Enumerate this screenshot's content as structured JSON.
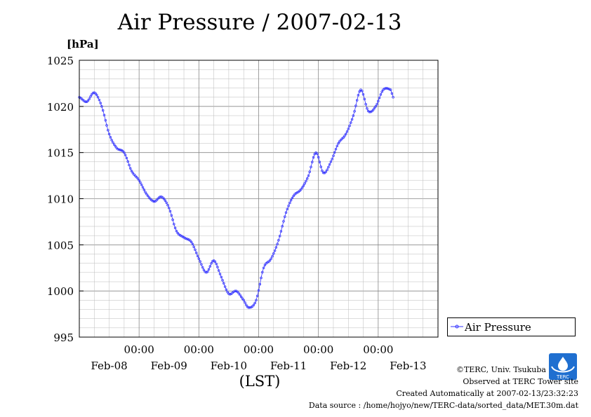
{
  "title": "Air Pressure / 2007-02-13",
  "unit_label": "[hPa]",
  "x_axis_label": "(LST)",
  "legend_label": "Air Pressure",
  "series_color": "#3333ff",
  "credits": {
    "line1": "©TERC, Univ. Tsukuba",
    "line2": "Observed at TERC Tower site",
    "line3": "Created Automatically at 2007-02-13/23:32:23",
    "line4": "Data source : /home/hojyo/new/TERC-data/sorted_data/MET.30m.dat"
  },
  "logo_text": "TERC",
  "chart_data": {
    "type": "line",
    "title": "Air Pressure / 2007-02-13",
    "xlabel": "(LST)",
    "ylabel": "[hPa]",
    "ylim": [
      995,
      1025
    ],
    "xlim_days": [
      "2007-02-08 00:00",
      "2007-02-14 00:00"
    ],
    "grid": true,
    "legend_position": "right",
    "y_ticks": [
      "995",
      "1000",
      "1005",
      "1010",
      "1015",
      "1020",
      "1025"
    ],
    "x_tick_times": [
      "00:00",
      "00:00",
      "00:00",
      "00:00",
      "00:00"
    ],
    "x_tick_dates": [
      "Feb-08",
      "Feb-09",
      "Feb-10",
      "Feb-11",
      "Feb-12",
      "Feb-13"
    ],
    "series": [
      {
        "name": "Air Pressure",
        "points": [
          [
            "2007-02-08 00:00",
            1021.0
          ],
          [
            "2007-02-08 03:00",
            1020.5
          ],
          [
            "2007-02-08 06:00",
            1021.5
          ],
          [
            "2007-02-08 09:00",
            1020.0
          ],
          [
            "2007-02-08 12:00",
            1017.0
          ],
          [
            "2007-02-08 15:00",
            1015.5
          ],
          [
            "2007-02-08 18:00",
            1015.0
          ],
          [
            "2007-02-08 21:00",
            1013.0
          ],
          [
            "2007-02-09 00:00",
            1012.0
          ],
          [
            "2007-02-09 03:00",
            1010.5
          ],
          [
            "2007-02-09 06:00",
            1009.7
          ],
          [
            "2007-02-09 09:00",
            1010.2
          ],
          [
            "2007-02-09 12:00",
            1009.0
          ],
          [
            "2007-02-09 15:00",
            1006.5
          ],
          [
            "2007-02-09 18:00",
            1005.8
          ],
          [
            "2007-02-09 21:00",
            1005.3
          ],
          [
            "2007-02-10 00:00",
            1003.5
          ],
          [
            "2007-02-10 03:00",
            1002.0
          ],
          [
            "2007-02-10 06:00",
            1003.3
          ],
          [
            "2007-02-10 09:00",
            1001.5
          ],
          [
            "2007-02-10 12:00",
            999.7
          ],
          [
            "2007-02-10 15:00",
            1000.0
          ],
          [
            "2007-02-10 18:00",
            999.0
          ],
          [
            "2007-02-10 20:00",
            998.2
          ],
          [
            "2007-02-10 23:00",
            999.0
          ],
          [
            "2007-02-11 02:00",
            1002.5
          ],
          [
            "2007-02-11 05:00",
            1003.5
          ],
          [
            "2007-02-11 08:00",
            1005.5
          ],
          [
            "2007-02-11 11:00",
            1008.5
          ],
          [
            "2007-02-11 14:00",
            1010.3
          ],
          [
            "2007-02-11 17:00",
            1011.0
          ],
          [
            "2007-02-11 20:00",
            1012.5
          ],
          [
            "2007-02-11 23:00",
            1015.0
          ],
          [
            "2007-02-12 02:00",
            1012.8
          ],
          [
            "2007-02-12 05:00",
            1014.0
          ],
          [
            "2007-02-12 08:00",
            1016.0
          ],
          [
            "2007-02-12 11:00",
            1017.0
          ],
          [
            "2007-02-12 14:00",
            1019.0
          ],
          [
            "2007-02-12 17:00",
            1021.8
          ],
          [
            "2007-02-12 20:00",
            1019.5
          ],
          [
            "2007-02-12 23:00",
            1020.0
          ],
          [
            "2007-02-13 02:00",
            1021.8
          ],
          [
            "2007-02-13 05:00",
            1021.8
          ],
          [
            "2007-02-13 06:00",
            1021.0
          ]
        ]
      }
    ]
  }
}
